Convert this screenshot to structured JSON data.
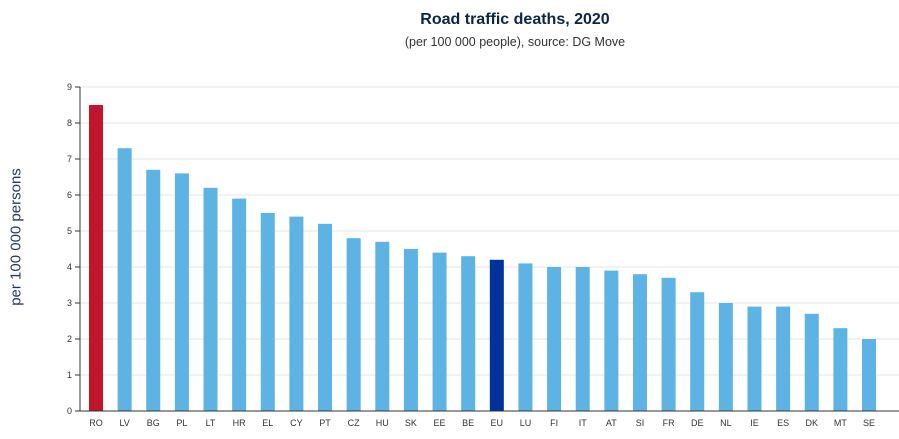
{
  "chart_data": {
    "type": "bar",
    "title": "Road traffic deaths, 2020",
    "subtitle": "(per 100 000 people), source: DG Move",
    "xlabel": "",
    "ylabel": "per 100 000 persons",
    "ylim": [
      0,
      9
    ],
    "yticks": [
      0,
      1,
      2,
      3,
      4,
      5,
      6,
      7,
      8,
      9
    ],
    "grid": true,
    "categories": [
      "RO",
      "LV",
      "BG",
      "PL",
      "LT",
      "HR",
      "EL",
      "CY",
      "PT",
      "CZ",
      "HU",
      "SK",
      "EE",
      "BE",
      "EU",
      "LU",
      "FI",
      "IT",
      "AT",
      "SI",
      "FR",
      "DE",
      "NL",
      "IE",
      "ES",
      "DK",
      "MT",
      "SE"
    ],
    "values": [
      8.5,
      7.3,
      6.7,
      6.6,
      6.2,
      5.9,
      5.5,
      5.4,
      5.2,
      4.8,
      4.7,
      4.5,
      4.4,
      4.3,
      4.2,
      4.1,
      4.0,
      4.0,
      3.9,
      3.8,
      3.7,
      3.3,
      3.0,
      2.9,
      2.9,
      2.7,
      2.3,
      2.0
    ],
    "colors": {
      "default": "#5db3e4",
      "highlight_max": "#c0152b",
      "highlight_eu": "#003399",
      "axis": "#333333",
      "grid": "#e6e6e6"
    },
    "highlights": {
      "RO": "highlight_max",
      "EU": "highlight_eu"
    }
  }
}
